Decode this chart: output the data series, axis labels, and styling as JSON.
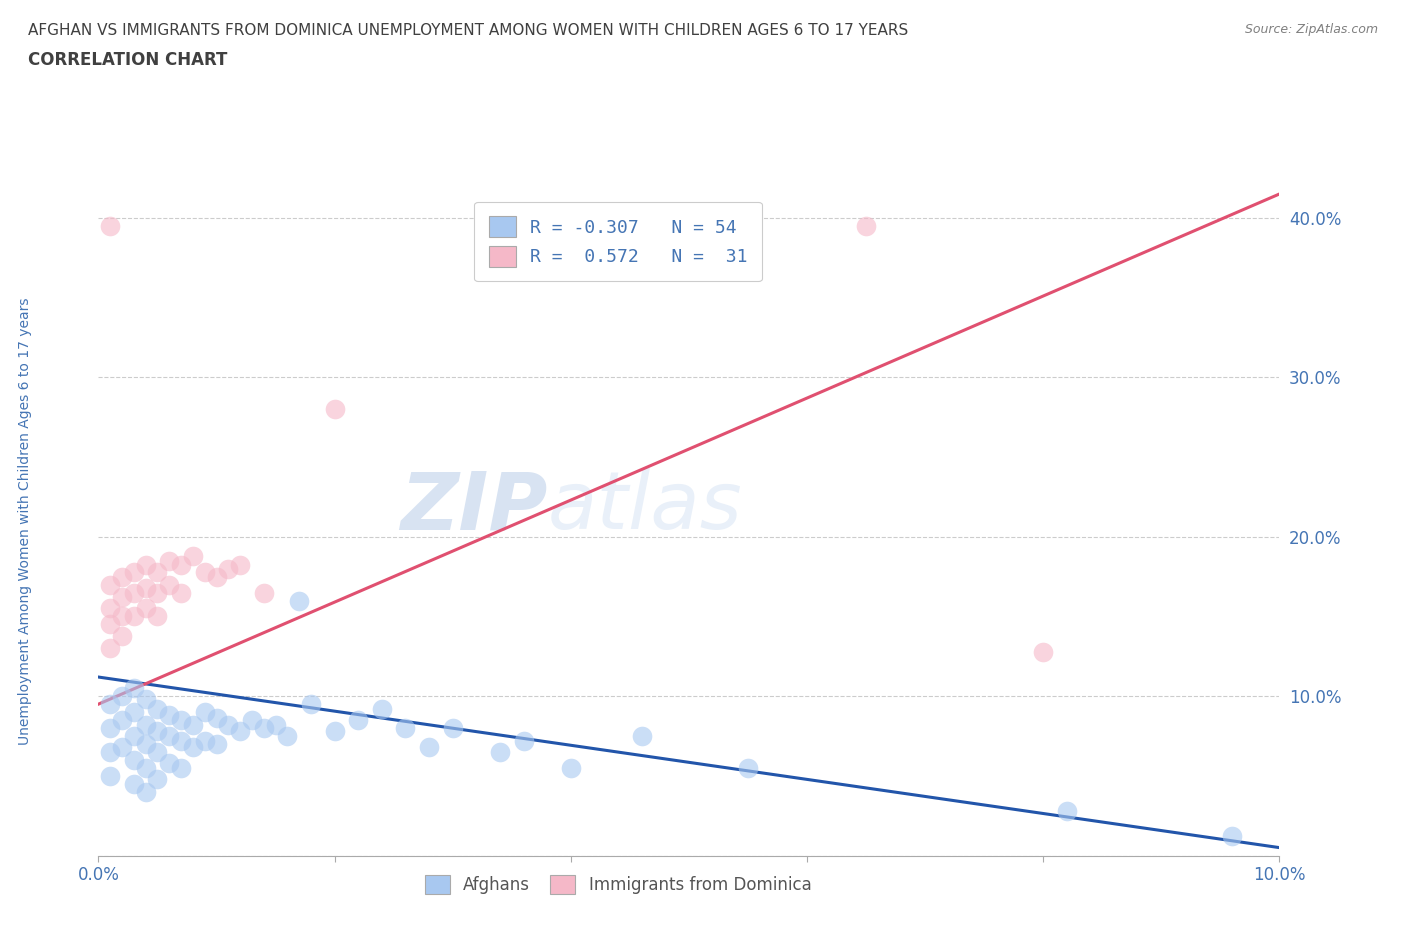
{
  "title_line1": "AFGHAN VS IMMIGRANTS FROM DOMINICA UNEMPLOYMENT AMONG WOMEN WITH CHILDREN AGES 6 TO 17 YEARS",
  "title_line2": "CORRELATION CHART",
  "source_text": "Source: ZipAtlas.com",
  "ylabel": "Unemployment Among Women with Children Ages 6 to 17 years",
  "xlim": [
    0.0,
    0.1
  ],
  "ylim": [
    0.0,
    0.42
  ],
  "grid_color": "#cccccc",
  "watermark_zip": "ZIP",
  "watermark_atlas": "atlas",
  "legend_R_afghan": "-0.307",
  "legend_N_afghan": "54",
  "legend_R_dominica": "0.572",
  "legend_N_dominica": "31",
  "afghan_color": "#a8c8f0",
  "dominica_color": "#f5b8c8",
  "afghan_line_color": "#2255aa",
  "dominica_line_color": "#e05070",
  "legend_text_color": "#4575b4",
  "title_color": "#404040",
  "axis_tick_color": "#4575b4",
  "source_color": "#808080",
  "background_color": "#ffffff",
  "afghan_scatter_x": [
    0.001,
    0.001,
    0.001,
    0.001,
    0.002,
    0.002,
    0.002,
    0.003,
    0.003,
    0.003,
    0.003,
    0.003,
    0.004,
    0.004,
    0.004,
    0.004,
    0.004,
    0.005,
    0.005,
    0.005,
    0.005,
    0.006,
    0.006,
    0.006,
    0.007,
    0.007,
    0.007,
    0.008,
    0.008,
    0.009,
    0.009,
    0.01,
    0.01,
    0.011,
    0.012,
    0.013,
    0.014,
    0.015,
    0.016,
    0.017,
    0.018,
    0.02,
    0.022,
    0.024,
    0.026,
    0.028,
    0.03,
    0.034,
    0.036,
    0.04,
    0.046,
    0.055,
    0.082,
    0.096
  ],
  "afghan_scatter_y": [
    0.095,
    0.08,
    0.065,
    0.05,
    0.1,
    0.085,
    0.068,
    0.105,
    0.09,
    0.075,
    0.06,
    0.045,
    0.098,
    0.082,
    0.07,
    0.055,
    0.04,
    0.092,
    0.078,
    0.065,
    0.048,
    0.088,
    0.075,
    0.058,
    0.085,
    0.072,
    0.055,
    0.082,
    0.068,
    0.09,
    0.072,
    0.086,
    0.07,
    0.082,
    0.078,
    0.085,
    0.08,
    0.082,
    0.075,
    0.16,
    0.095,
    0.078,
    0.085,
    0.092,
    0.08,
    0.068,
    0.08,
    0.065,
    0.072,
    0.055,
    0.075,
    0.055,
    0.028,
    0.012
  ],
  "dominica_scatter_x": [
    0.001,
    0.001,
    0.001,
    0.001,
    0.001,
    0.002,
    0.002,
    0.002,
    0.002,
    0.003,
    0.003,
    0.003,
    0.004,
    0.004,
    0.004,
    0.005,
    0.005,
    0.005,
    0.006,
    0.006,
    0.007,
    0.007,
    0.008,
    0.009,
    0.01,
    0.011,
    0.012,
    0.014,
    0.02,
    0.065,
    0.08
  ],
  "dominica_scatter_y": [
    0.395,
    0.17,
    0.155,
    0.145,
    0.13,
    0.175,
    0.162,
    0.15,
    0.138,
    0.178,
    0.165,
    0.15,
    0.182,
    0.168,
    0.155,
    0.178,
    0.165,
    0.15,
    0.185,
    0.17,
    0.182,
    0.165,
    0.188,
    0.178,
    0.175,
    0.18,
    0.182,
    0.165,
    0.28,
    0.395,
    0.128
  ],
  "afghan_line_x": [
    0.0,
    0.1
  ],
  "afghan_line_y": [
    0.112,
    0.005
  ],
  "dominica_line_x": [
    0.0,
    0.1
  ],
  "dominica_line_y": [
    0.095,
    0.415
  ]
}
